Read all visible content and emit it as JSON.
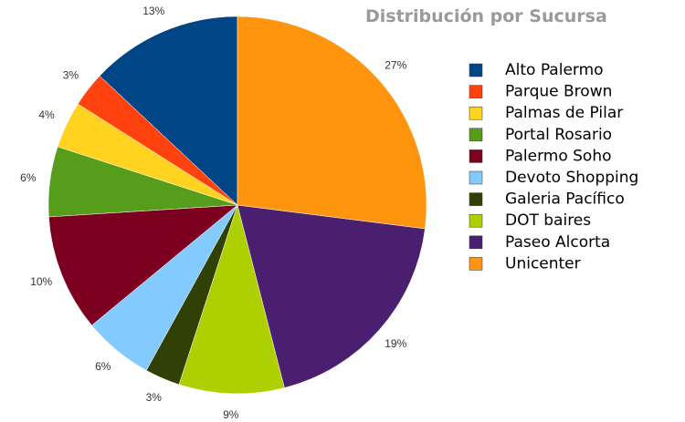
{
  "chart_data": {
    "type": "pie",
    "title": "Distribución por Sucursa",
    "categories": [
      "Alto Palermo",
      "Parque Brown",
      "Palmas de Pilar",
      "Portal Rosario",
      "Palermo Soho",
      "Devoto Shopping",
      "Galeria Pacífico",
      "DOT baires",
      "Paseo Alcorta",
      "Unicenter"
    ],
    "values": [
      13,
      3,
      4,
      6,
      10,
      6,
      3,
      9,
      19,
      27
    ],
    "value_labels": [
      "13%",
      "3%",
      "4%",
      "6%",
      "10%",
      "6%",
      "3%",
      "9%",
      "19%",
      "27%"
    ],
    "colors": [
      "#004586",
      "#ff420e",
      "#ffd320",
      "#579d1c",
      "#7e0021",
      "#83caff",
      "#314004",
      "#aecf00",
      "#4b1f6f",
      "#ff950e"
    ],
    "legend": "right"
  }
}
